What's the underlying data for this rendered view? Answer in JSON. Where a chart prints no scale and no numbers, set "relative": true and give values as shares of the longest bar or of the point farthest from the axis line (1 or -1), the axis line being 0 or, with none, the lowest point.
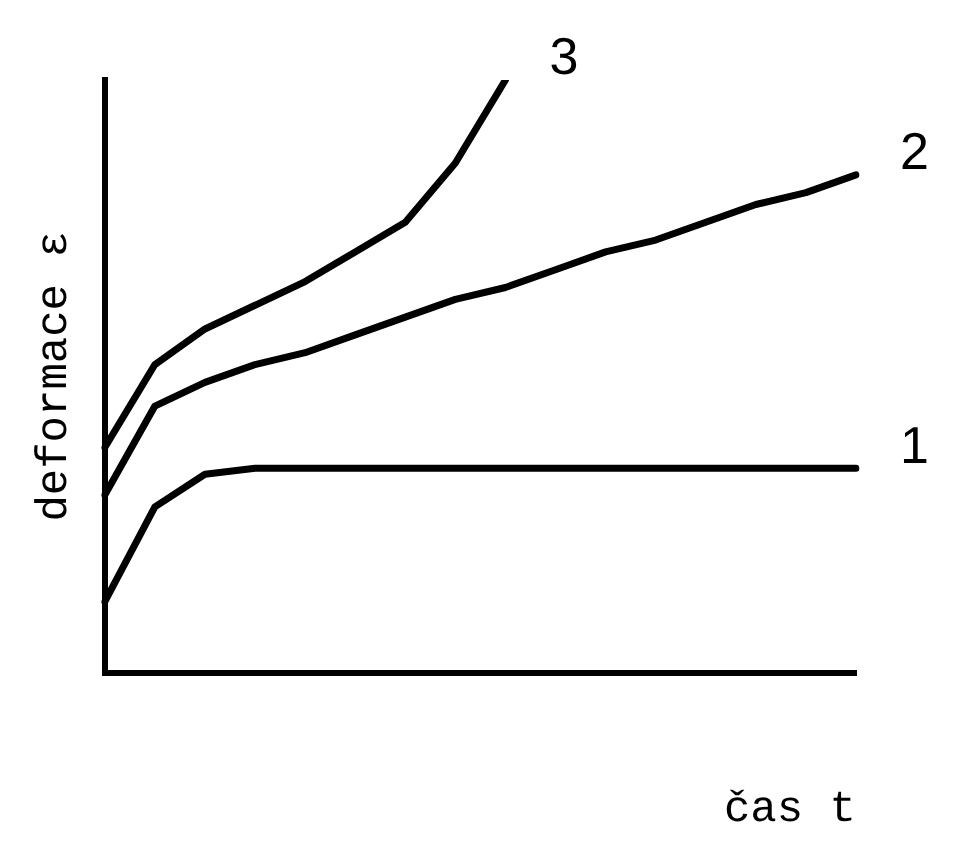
{
  "chart_data": {
    "type": "line",
    "relative": true,
    "xlabel": "čas t",
    "ylabel": "deformace ε",
    "grid": false,
    "legend": false,
    "marker": "none",
    "line_style": "solid",
    "categories": [
      null,
      null,
      null,
      null,
      null,
      null,
      null,
      null,
      null,
      null,
      null,
      null,
      null,
      null,
      null,
      null
    ],
    "series": [
      {
        "name": "1",
        "color": "#000000",
        "values": [
          0.12,
          0.28,
          0.335,
          0.345,
          0.345,
          0.345,
          0.345,
          0.345,
          0.345,
          0.345,
          0.345,
          0.345,
          0.345,
          0.345,
          0.345,
          0.345
        ]
      },
      {
        "name": "2",
        "color": "#000000",
        "values": [
          0.3,
          0.45,
          0.49,
          0.52,
          0.54,
          0.57,
          0.6,
          0.63,
          0.65,
          0.68,
          0.71,
          0.73,
          0.76,
          0.79,
          0.81,
          0.84
        ]
      },
      {
        "name": "3",
        "color": "#000000",
        "values": [
          0.38,
          0.52,
          0.58,
          0.62,
          0.66,
          0.71,
          0.76,
          0.86,
          1.0,
          null,
          null,
          null,
          null,
          null,
          null,
          null
        ]
      }
    ]
  }
}
